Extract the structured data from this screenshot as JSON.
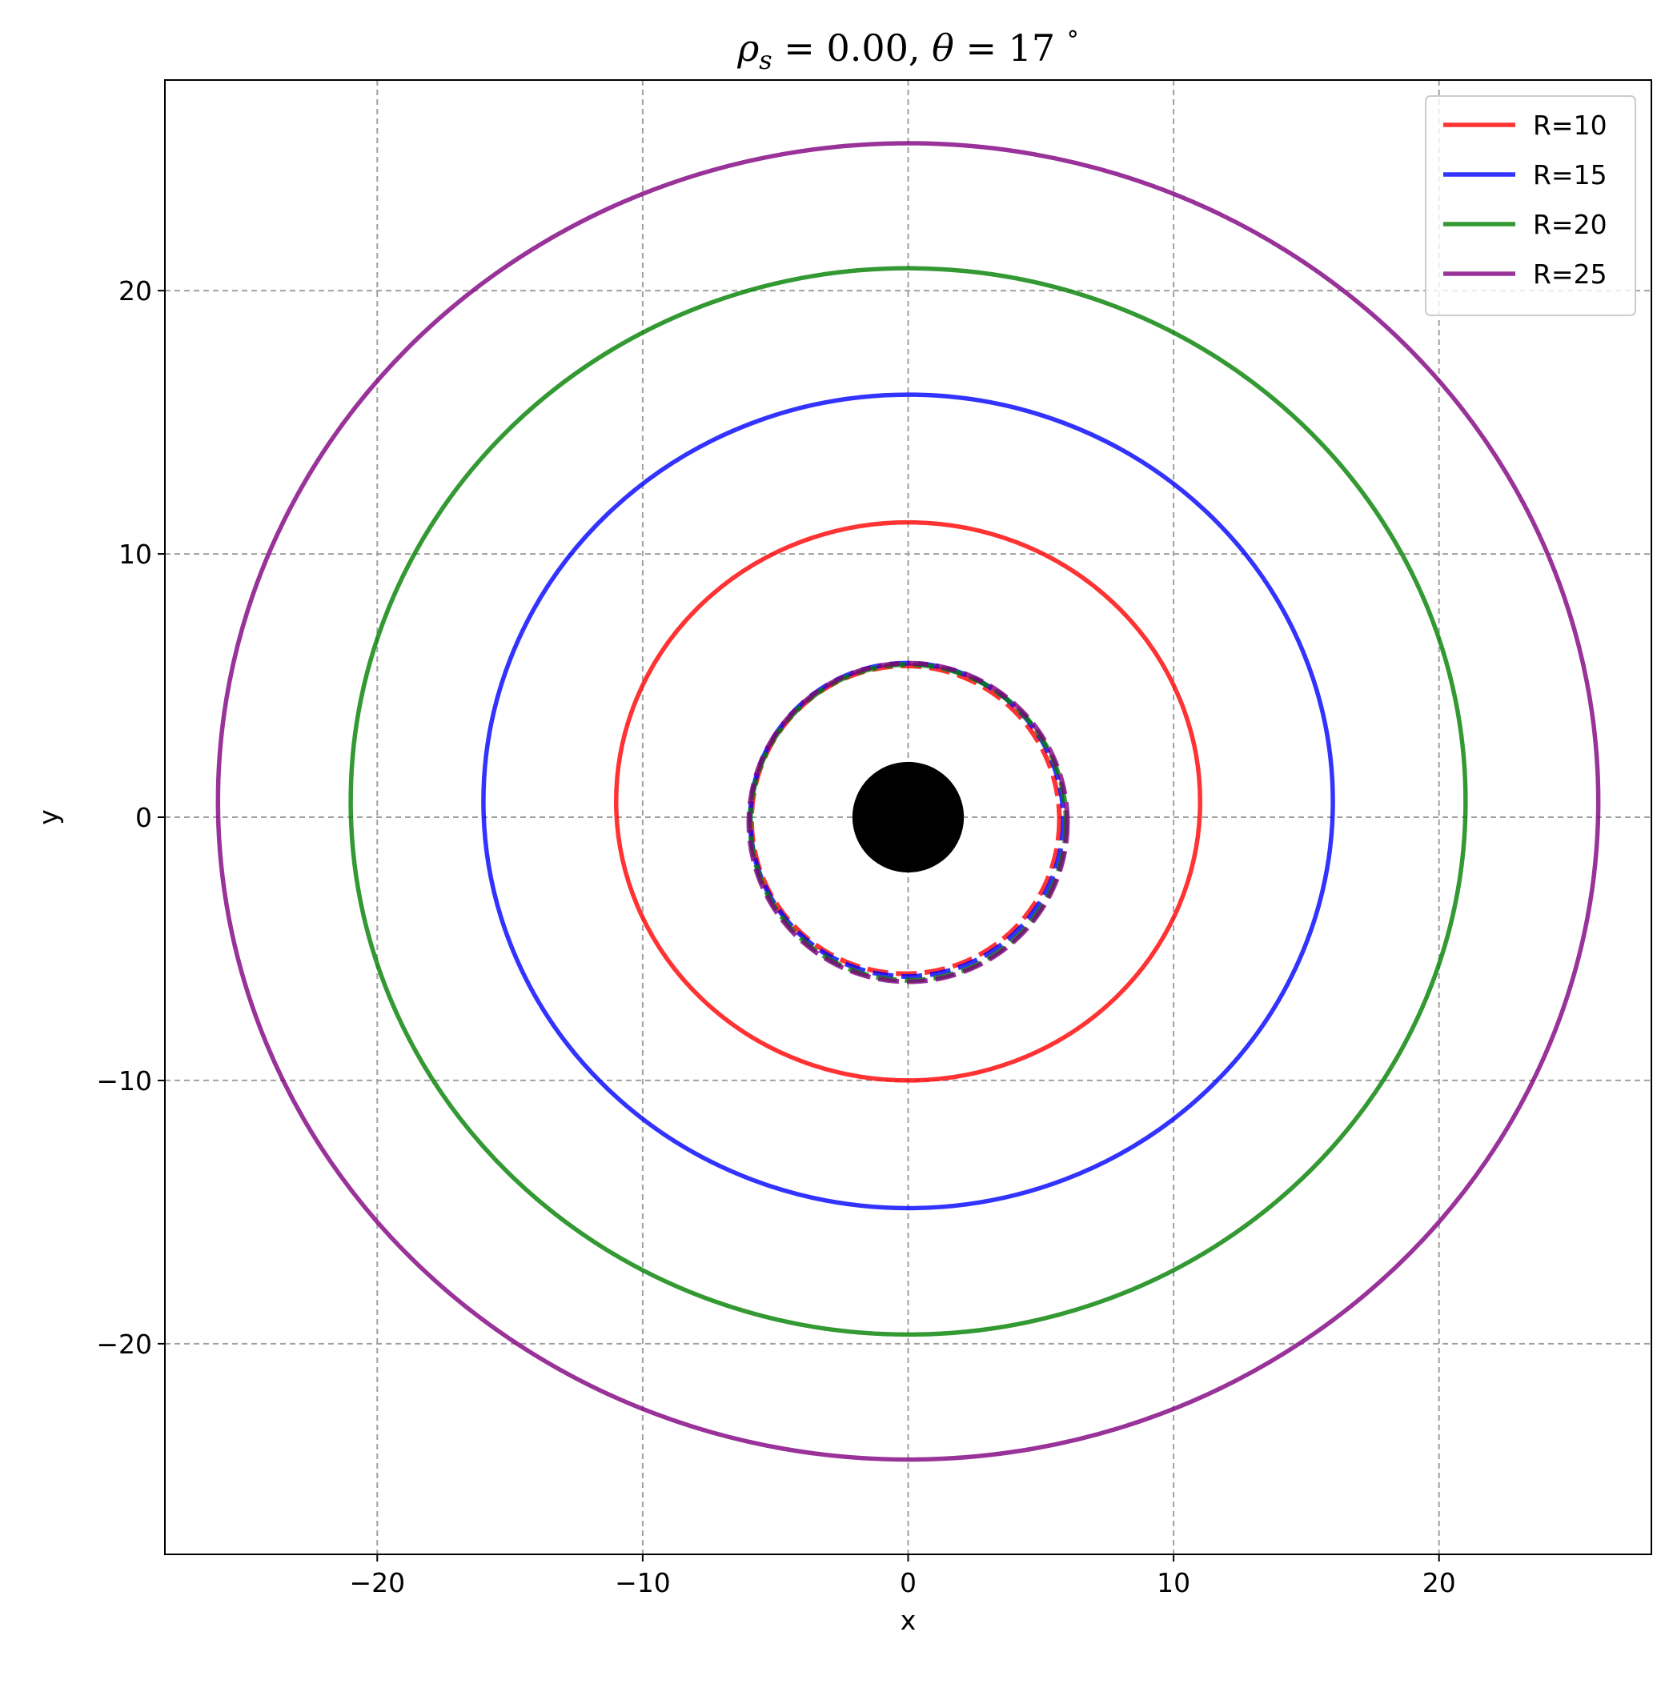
{
  "chart_data": {
    "type": "line",
    "title": "ρs = 0.00,  θ = 17 °",
    "title_parts": {
      "rho": "ρ",
      "sub": "s",
      "rho_eq": " = 0.00,  ",
      "theta": "θ",
      "theta_eq": " = 17 ",
      "deg": "°"
    },
    "xlabel": "x",
    "ylabel": "y",
    "xlim": [
      -28,
      28
    ],
    "ylim": [
      -28,
      28
    ],
    "xticks": [
      -20,
      -10,
      0,
      10,
      20
    ],
    "yticks": [
      -20,
      -10,
      0,
      10,
      20
    ],
    "xtick_labels": [
      "−20",
      "−10",
      "0",
      "10",
      "20"
    ],
    "ytick_labels": [
      "−20",
      "−10",
      "0",
      "10",
      "20"
    ],
    "grid": true,
    "legend_position": "top-right",
    "central_disk": {
      "center": [
        0,
        0
      ],
      "radius": 2.1,
      "color": "#000000"
    },
    "series": [
      {
        "name": "R=10",
        "color": "#ff0000",
        "solid_ring": {
          "center_x": 0.0,
          "center_y": 0.6,
          "radius_x": 11.0,
          "radius_y": 10.6
        },
        "dashed_ring": {
          "center_x": -0.1,
          "center_y": -0.1,
          "radius": 5.8
        }
      },
      {
        "name": "R=15",
        "color": "#0000ff",
        "solid_ring": {
          "center_x": 0.0,
          "center_y": 0.6,
          "radius_x": 16.0,
          "radius_y": 15.45
        },
        "dashed_ring": {
          "center_x": -0.05,
          "center_y": -0.1,
          "radius": 5.9
        }
      },
      {
        "name": "R=20",
        "color": "#008000",
        "solid_ring": {
          "center_x": 0.0,
          "center_y": 0.6,
          "radius_x": 21.0,
          "radius_y": 20.25
        },
        "dashed_ring": {
          "center_x": 0.0,
          "center_y": -0.2,
          "radius": 5.95
        }
      },
      {
        "name": "R=25",
        "color": "#800080",
        "solid_ring": {
          "center_x": 0.0,
          "center_y": 0.6,
          "radius_x": 26.0,
          "radius_y": 25.0
        },
        "dashed_ring": {
          "center_x": 0.0,
          "center_y": -0.2,
          "radius": 6.0
        }
      }
    ]
  }
}
